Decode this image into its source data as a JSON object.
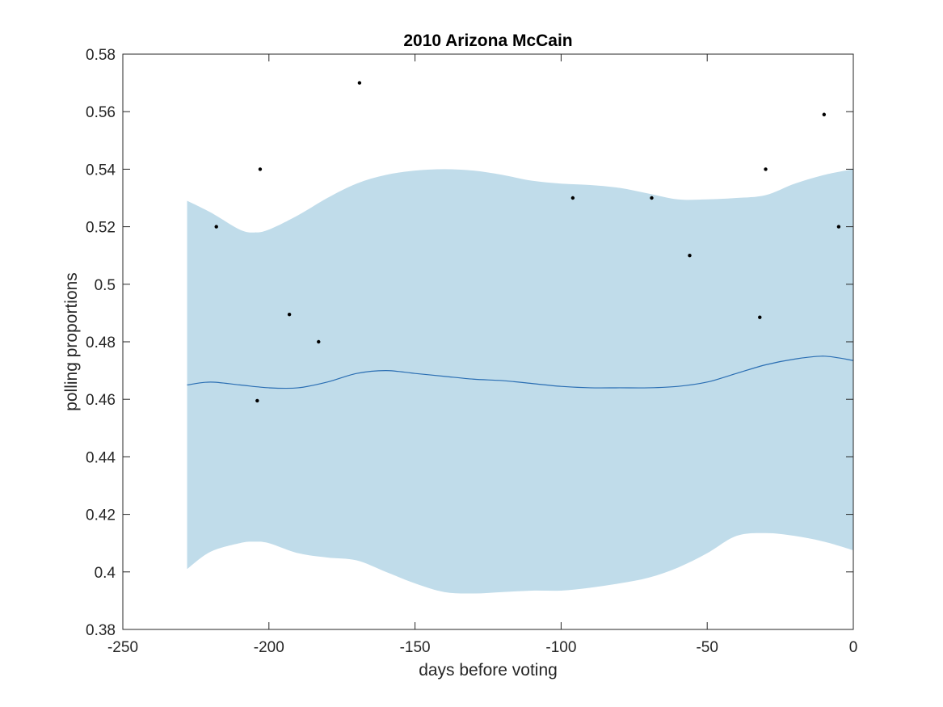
{
  "chart_data": {
    "type": "line",
    "title": "2010 Arizona McCain",
    "xlabel": "days before voting",
    "ylabel": "polling proportions",
    "xlim": [
      -250,
      0
    ],
    "ylim": [
      0.38,
      0.58
    ],
    "xticks": [
      -250,
      -200,
      -150,
      -100,
      -50,
      0
    ],
    "xtick_labels": [
      "-250",
      "-200",
      "-150",
      "-100",
      "-50",
      "0"
    ],
    "yticks": [
      0.38,
      0.4,
      0.42,
      0.44,
      0.46,
      0.48,
      0.5,
      0.52,
      0.54,
      0.56,
      0.58
    ],
    "ytick_labels": [
      "0.38",
      "0.4",
      "0.42",
      "0.44",
      "0.46",
      "0.48",
      "0.5",
      "0.52",
      "0.54",
      "0.56",
      "0.58"
    ],
    "grid": false,
    "legend": "none",
    "colors": {
      "band": "#c0dcea",
      "line": "#2a6eb3",
      "points": "#000000",
      "axis": "#262626"
    },
    "series": [
      {
        "kind": "mean-line",
        "x": [
          -228,
          -220,
          -210,
          -200,
          -190,
          -180,
          -170,
          -160,
          -150,
          -140,
          -130,
          -120,
          -110,
          -100,
          -90,
          -80,
          -70,
          -60,
          -50,
          -40,
          -30,
          -20,
          -10,
          0
        ],
        "y": [
          0.465,
          0.466,
          0.465,
          0.464,
          0.464,
          0.466,
          0.469,
          0.47,
          0.469,
          0.468,
          0.467,
          0.4665,
          0.4655,
          0.4645,
          0.464,
          0.464,
          0.464,
          0.4645,
          0.466,
          0.469,
          0.472,
          0.474,
          0.475,
          0.4735
        ]
      },
      {
        "kind": "confidence-band",
        "x": [
          -228,
          -220,
          -210,
          -205,
          -200,
          -190,
          -180,
          -170,
          -160,
          -150,
          -140,
          -130,
          -120,
          -110,
          -100,
          -90,
          -80,
          -70,
          -60,
          -50,
          -40,
          -30,
          -20,
          -10,
          0
        ],
        "upper": [
          0.529,
          0.525,
          0.519,
          0.518,
          0.519,
          0.524,
          0.53,
          0.535,
          0.538,
          0.5395,
          0.54,
          0.5395,
          0.538,
          0.536,
          0.535,
          0.5345,
          0.5335,
          0.5315,
          0.5295,
          0.5295,
          0.53,
          0.531,
          0.535,
          0.538,
          0.54
        ],
        "lower": [
          0.401,
          0.407,
          0.41,
          0.4105,
          0.41,
          0.4065,
          0.405,
          0.404,
          0.4,
          0.396,
          0.393,
          0.3925,
          0.393,
          0.3935,
          0.3935,
          0.3945,
          0.396,
          0.398,
          0.4015,
          0.4065,
          0.4125,
          0.4135,
          0.4125,
          0.4105,
          0.4075
        ]
      },
      {
        "kind": "polls",
        "points": [
          {
            "x": -218,
            "y": 0.52
          },
          {
            "x": -204,
            "y": 0.4595
          },
          {
            "x": -203,
            "y": 0.54
          },
          {
            "x": -193,
            "y": 0.4895
          },
          {
            "x": -183,
            "y": 0.48
          },
          {
            "x": -169,
            "y": 0.57
          },
          {
            "x": -96,
            "y": 0.53
          },
          {
            "x": -69,
            "y": 0.53
          },
          {
            "x": -56,
            "y": 0.51
          },
          {
            "x": -32,
            "y": 0.4885
          },
          {
            "x": -30,
            "y": 0.54
          },
          {
            "x": -10,
            "y": 0.559
          },
          {
            "x": -5,
            "y": 0.52
          }
        ]
      }
    ]
  }
}
